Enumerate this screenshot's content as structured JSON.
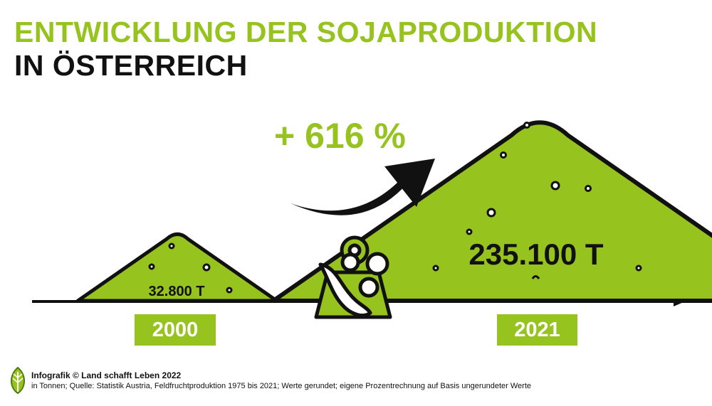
{
  "header": {
    "title_line1": "ENTWICKLUNG DER SOJAPRODUKTION",
    "title_line2": "IN ÖSTERREICH"
  },
  "chart_data": {
    "type": "pictorial",
    "categories": [
      "2000",
      "2021"
    ],
    "values": [
      32800,
      235100
    ],
    "unit": "T",
    "data_labels": [
      "32.800 T",
      "235.100 T"
    ],
    "change_label": "+ 616 %",
    "colors": {
      "accent": "#97c31f",
      "ink": "#111111"
    }
  },
  "icons": {
    "trend": "curved-arrow-icon",
    "product": "soy-bag-icon",
    "brand": "leaf-logo-icon"
  },
  "footer": {
    "credit": "Infografik © Land schafft Leben 2022",
    "source": "in Tonnen; Quelle: Statistik Austria, Feldfruchtproduktion 1975 bis 2021; Werte gerundet; eigene Prozentrechnung auf Basis ungerundeter Werte"
  }
}
